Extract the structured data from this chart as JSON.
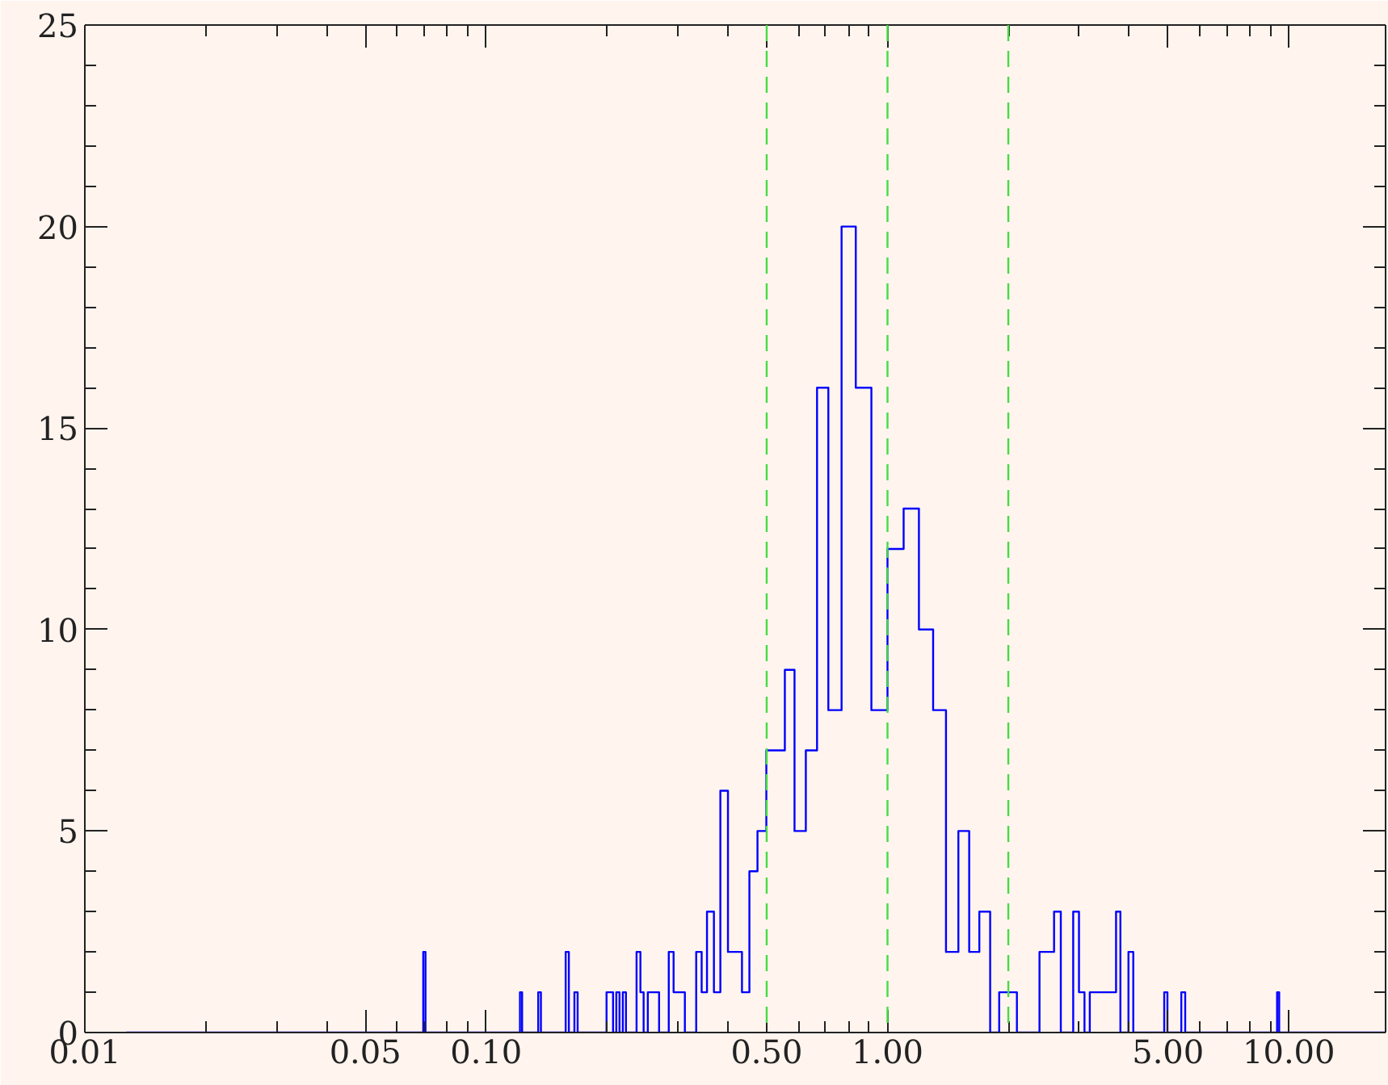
{
  "chart_data": {
    "type": "histogram",
    "log": "x",
    "grid": false,
    "bins": [
      0.0127,
      0.0697,
      0.0706,
      0.1214,
      0.1229,
      0.1348,
      0.1369,
      0.1578,
      0.1607,
      0.1659,
      0.169,
      0.1995,
      0.2071,
      0.211,
      0.2149,
      0.219,
      0.223,
      0.237,
      0.2423,
      0.2468,
      0.2528,
      0.2697,
      0.2851,
      0.2931,
      0.3127,
      0.3337,
      0.3443,
      0.355,
      0.3694,
      0.3833,
      0.4004,
      0.4339,
      0.4528,
      0.4743,
      0.499,
      0.5549,
      0.5866,
      0.6259,
      0.6675,
      0.7122,
      0.7684,
      0.8336,
      0.9117,
      1.0,
      1.097,
      1.1976,
      1.2993,
      1.3988,
      1.5018,
      1.5979,
      1.6937,
      1.8022,
      1.898,
      2.1012,
      2.3918,
      2.6003,
      2.7029,
      2.9021,
      3.0,
      3.0962,
      3.1918,
      3.711,
      3.8046,
      3.9848,
      4.0966,
      4.8923,
      4.9831,
      5.3962,
      5.5181,
      9.348,
      9.461,
      17.42
    ],
    "values": [
      0,
      2,
      0,
      1,
      0,
      1,
      0,
      2,
      0,
      1,
      0,
      1,
      0,
      1,
      0,
      1,
      0,
      2,
      1,
      0,
      1,
      0,
      2,
      1,
      0,
      2,
      1,
      3,
      1,
      6,
      2,
      1,
      4,
      5,
      7,
      9,
      5,
      7,
      16,
      8,
      20,
      16,
      8,
      12,
      13,
      10,
      8,
      2,
      5,
      2,
      3,
      0,
      1,
      0,
      2,
      3,
      0,
      3,
      1,
      0,
      1,
      3,
      0,
      2,
      0,
      1,
      0,
      1,
      0,
      1,
      0
    ],
    "color": "#0000ff",
    "xlim": [
      0.01,
      17.42
    ],
    "ylim": [
      0,
      25
    ],
    "xticks": [
      {
        "value": 0.01,
        "label": "0.01"
      },
      {
        "value": 0.02,
        "label": null
      },
      {
        "value": 0.03,
        "label": null
      },
      {
        "value": 0.04,
        "label": null
      },
      {
        "value": 0.05,
        "label": "0.05"
      },
      {
        "value": 0.06,
        "label": null
      },
      {
        "value": 0.07,
        "label": null
      },
      {
        "value": 0.08,
        "label": null
      },
      {
        "value": 0.09,
        "label": null
      },
      {
        "value": 0.1,
        "label": "0.10"
      },
      {
        "value": 0.2,
        "label": null
      },
      {
        "value": 0.3,
        "label": null
      },
      {
        "value": 0.4,
        "label": null
      },
      {
        "value": 0.5,
        "label": "0.50"
      },
      {
        "value": 0.6,
        "label": null
      },
      {
        "value": 0.7,
        "label": null
      },
      {
        "value": 0.8,
        "label": null
      },
      {
        "value": 0.9,
        "label": null
      },
      {
        "value": 1,
        "label": "1.00"
      },
      {
        "value": 2,
        "label": null
      },
      {
        "value": 3,
        "label": null
      },
      {
        "value": 4,
        "label": null
      },
      {
        "value": 5,
        "label": "5.00"
      },
      {
        "value": 6,
        "label": null
      },
      {
        "value": 7,
        "label": null
      },
      {
        "value": 8,
        "label": null
      },
      {
        "value": 9,
        "label": null
      },
      {
        "value": 10,
        "label": "10.00"
      }
    ],
    "yticks": [
      0,
      {
        "value": 1,
        "label": null
      },
      {
        "value": 2,
        "label": null
      },
      {
        "value": 3,
        "label": null
      },
      {
        "value": 4,
        "label": null
      },
      5,
      {
        "value": 6,
        "label": null
      },
      {
        "value": 7,
        "label": null
      },
      {
        "value": 8,
        "label": null
      },
      {
        "value": 9,
        "label": null
      },
      10,
      {
        "value": 11,
        "label": null
      },
      {
        "value": 12,
        "label": null
      },
      {
        "value": 13,
        "label": null
      },
      {
        "value": 14,
        "label": null
      },
      15,
      {
        "value": 16,
        "label": null
      },
      {
        "value": 17,
        "label": null
      },
      {
        "value": 18,
        "label": null
      },
      {
        "value": 19,
        "label": null
      },
      20,
      {
        "value": 21,
        "label": null
      },
      {
        "value": 22,
        "label": null
      },
      {
        "value": 23,
        "label": null
      },
      {
        "value": 24,
        "label": null
      },
      25
    ],
    "ref_lines": [
      {
        "axis": "x",
        "value": 0.5,
        "color": "#44dd44",
        "line_style": "dashed"
      },
      {
        "axis": "x",
        "value": 1.0,
        "color": "#44dd44",
        "line_style": "dashed"
      },
      {
        "axis": "x",
        "value": 2.0,
        "color": "#44dd44",
        "line_style": "dashed"
      }
    ]
  }
}
